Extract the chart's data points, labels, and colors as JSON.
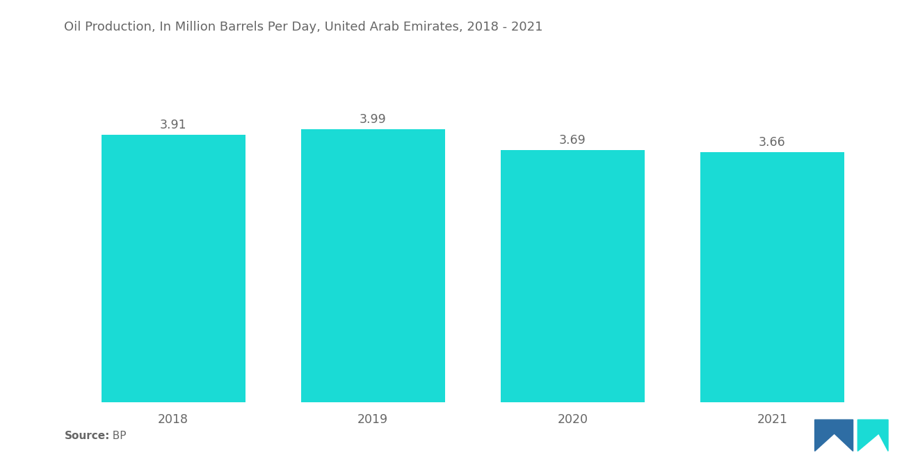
{
  "title": "Oil Production, In Million Barrels Per Day, United Arab Emirates, 2018 - 2021",
  "categories": [
    "2018",
    "2019",
    "2020",
    "2021"
  ],
  "values": [
    3.91,
    3.99,
    3.69,
    3.66
  ],
  "bar_color": "#1ADBD5",
  "background_color": "#ffffff",
  "text_color": "#666666",
  "title_fontsize": 13.0,
  "label_fontsize": 12.5,
  "value_fontsize": 12.5,
  "source_label": "Source:",
  "source_value": "  BP",
  "ylim": [
    0,
    4.6
  ],
  "bar_width": 0.72
}
